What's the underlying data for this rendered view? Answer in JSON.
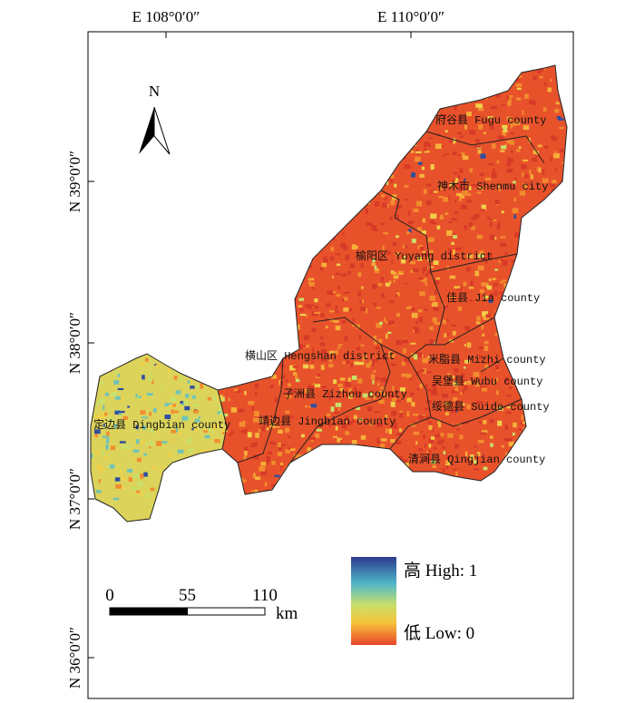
{
  "axes": {
    "top": [
      "E 108°0′0″",
      "E 110°0′0″"
    ],
    "left": [
      "N 39°0′0″",
      "N 38°0′0″",
      "N 37°0′0″",
      "N 36°0′0″"
    ]
  },
  "north_arrow": "N",
  "regions": [
    "府谷县 Fugu county",
    "神木市 Shenmu city",
    "榆阳区 Yuyang district",
    "佳县 Jia county",
    "横山区 Hengshan district",
    "米脂县 Mizhi county",
    "吴堡县 Wubu county",
    "子洲县 Zizhou county",
    "绥德县 Suide county",
    "定边县 Dingbian county",
    "靖边县 Jingbian county",
    "清涧县 Qingjian county"
  ],
  "legend": {
    "high": "高 High: 1",
    "low": "低 Low: 0"
  },
  "scale_bar": {
    "ticks": [
      0,
      55,
      110
    ],
    "unit": "km"
  }
}
